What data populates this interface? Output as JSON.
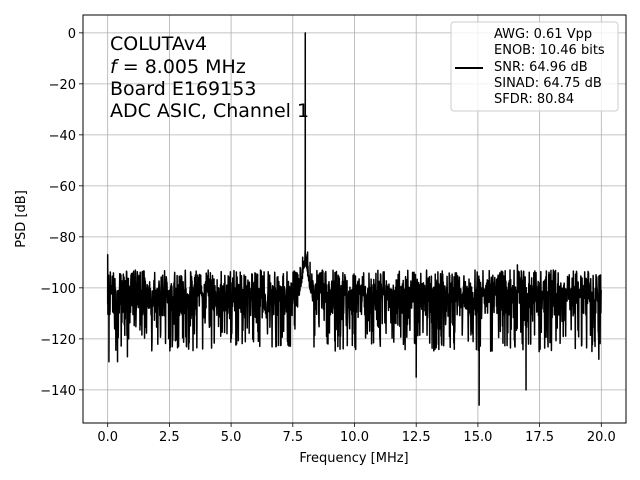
{
  "chart_data": {
    "type": "line",
    "xlabel": "Frequency [MHz]",
    "ylabel": "PSD [dB]",
    "xlim": [
      -1,
      21
    ],
    "ylim": [
      -153,
      7
    ],
    "xticks": [
      0.0,
      2.5,
      5.0,
      7.5,
      10.0,
      12.5,
      15.0,
      17.5,
      20.0
    ],
    "xtick_labels": [
      "0.0",
      "2.5",
      "5.0",
      "7.5",
      "10.0",
      "12.5",
      "15.0",
      "17.5",
      "20.0"
    ],
    "yticks": [
      0,
      -20,
      -40,
      -60,
      -80,
      -100,
      -120,
      -140
    ],
    "ytick_labels": [
      "0",
      "−20",
      "−40",
      "−60",
      "−80",
      "−100",
      "−120",
      "−140"
    ],
    "grid": true,
    "annotation": {
      "line1": "COLUTAv4",
      "line2_italic": "f",
      "line2_rest": " = 8.005 MHz",
      "line3": "Board E169153",
      "line4": "ADC ASIC, Channel 1"
    },
    "legend": {
      "placement": "top-right",
      "lines": [
        "AWG: 0.61 Vpp",
        "ENOB: 10.46 bits",
        "SNR: 64.96 dB",
        "SINAD: 64.75 dB",
        "SFDR: 80.84"
      ]
    },
    "series": [
      {
        "color": "#000000",
        "noise_floor_db": -105,
        "noise_range_db": [
          -125,
          -93
        ],
        "peak": {
          "x": 8.005,
          "y": 0
        },
        "peak_skirt": [
          {
            "x": 7.7,
            "y": -100
          },
          {
            "x": 7.8,
            "y": -92
          },
          {
            "x": 7.9,
            "y": -88
          },
          {
            "x": 8.1,
            "y": -86
          },
          {
            "x": 8.2,
            "y": -90
          },
          {
            "x": 8.3,
            "y": -104
          }
        ],
        "spurs": [
          {
            "x": 0.0,
            "y": -87
          },
          {
            "x": 0.05,
            "y": -129
          },
          {
            "x": 0.4,
            "y": -129
          },
          {
            "x": 0.8,
            "y": -127
          },
          {
            "x": 12.5,
            "y": -135
          },
          {
            "x": 15.05,
            "y": -146
          },
          {
            "x": 16.3,
            "y": -93
          },
          {
            "x": 16.6,
            "y": -91
          },
          {
            "x": 16.95,
            "y": -140
          },
          {
            "x": 19.9,
            "y": -128
          }
        ]
      }
    ]
  }
}
